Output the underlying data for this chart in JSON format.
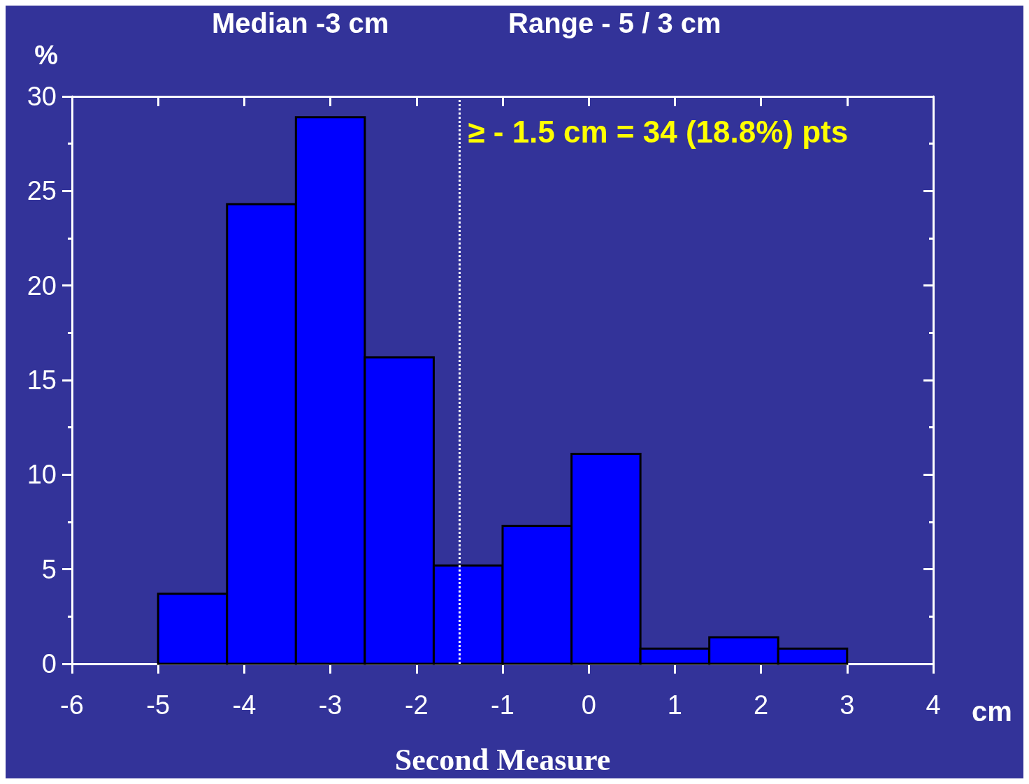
{
  "chart_data": {
    "type": "histogram",
    "title": "Median -3 cm",
    "subtitle": "Range - 5 / 3 cm",
    "xlabel": "Second Measure",
    "ylabel": "%",
    "bins": [
      -5,
      -4.2,
      -3.4,
      -2.6,
      -1.8,
      -1,
      -0.2,
      0.6,
      1.4,
      2.2,
      3
    ],
    "values": [
      3.7,
      24.3,
      28.9,
      16.2,
      5.2,
      7.3,
      11.1,
      0.8,
      1.4,
      0.8
    ],
    "color": "#0000ff",
    "xlim": [
      -6,
      4
    ],
    "xticks": [
      -6,
      -5,
      -4,
      -3,
      -2,
      -1,
      0,
      1,
      2,
      3,
      4
    ],
    "ylim": [
      0,
      30
    ],
    "yticks": [
      0,
      5,
      10,
      15,
      20,
      25,
      30
    ],
    "ref_lines": [
      {
        "axis": "x",
        "value": -1.5,
        "label": "≥ - 1.5 cm = 34 (18.8%) pts",
        "color": "#ffffff",
        "line_style": "dotted"
      }
    ],
    "annotations": [
      "cm"
    ]
  }
}
